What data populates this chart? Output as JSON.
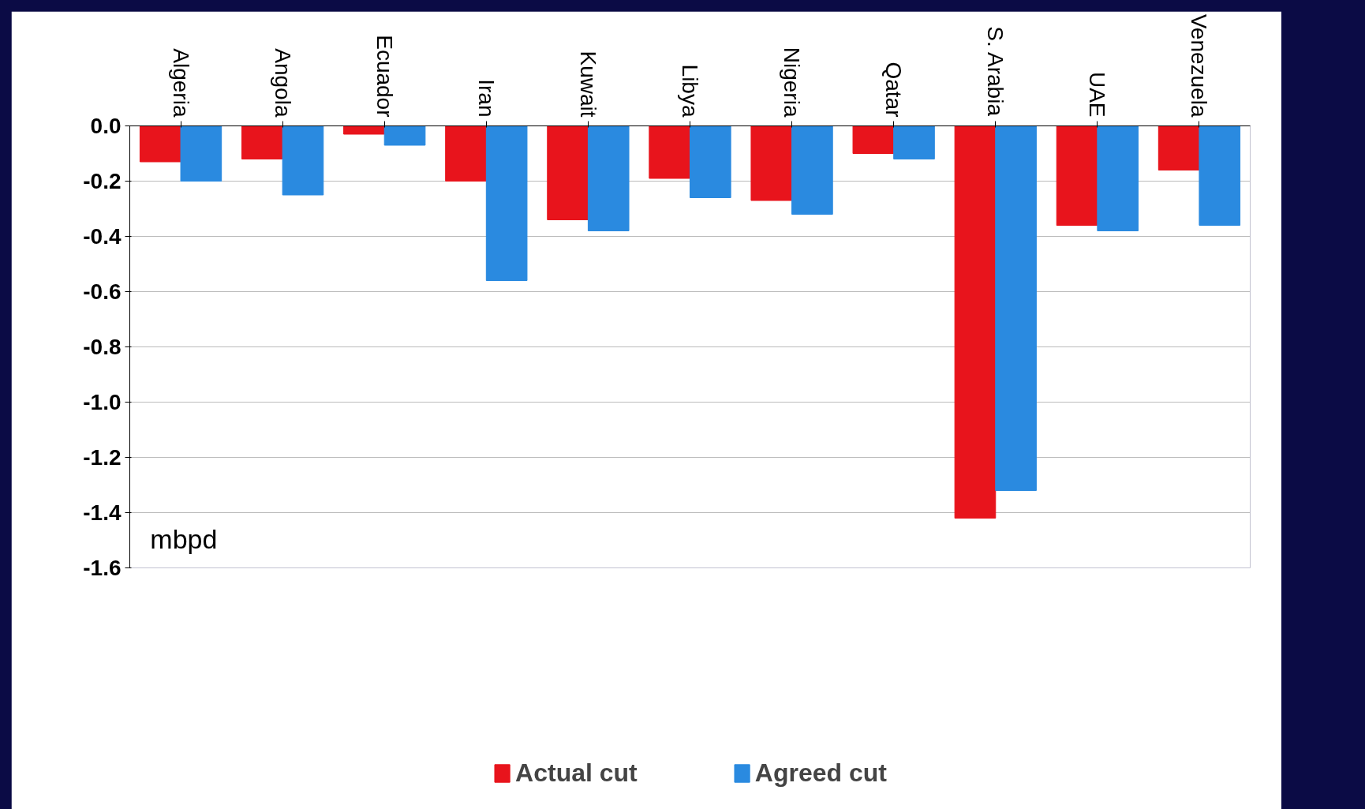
{
  "chart_data": {
    "type": "bar",
    "ylabel": "mbpd",
    "categories": [
      "Algeria",
      "Angola",
      "Ecuador",
      "Iran",
      "Kuwait",
      "Libya",
      "Nigeria",
      "Qatar",
      "S. Arabia",
      "UAE",
      "Venezuela"
    ],
    "series": [
      {
        "name": "Actual cut",
        "color": "#e8141c",
        "values": [
          -0.13,
          -0.12,
          -0.03,
          -0.2,
          -0.34,
          -0.19,
          -0.27,
          -0.1,
          -1.42,
          -0.36,
          -0.16
        ]
      },
      {
        "name": "Agreed cut",
        "color": "#2a8ae0",
        "values": [
          -0.2,
          -0.25,
          -0.07,
          -0.56,
          -0.38,
          -0.26,
          -0.32,
          -0.12,
          -1.32,
          -0.38,
          -0.36
        ]
      }
    ],
    "ylim": [
      -1.6,
      0
    ],
    "yticks": [
      {
        "value": -1.6,
        "label": "-1.6"
      },
      {
        "value": -1.4,
        "label": "-1.4"
      },
      {
        "value": -1.2,
        "label": "-1.2"
      },
      {
        "value": -1.0,
        "label": "-1.0"
      },
      {
        "value": -0.8,
        "label": "-0.8"
      },
      {
        "value": -0.6,
        "label": "-0.6"
      },
      {
        "value": -0.4,
        "label": "-0.4"
      },
      {
        "value": -0.2,
        "label": "-0.2"
      },
      {
        "value": 0,
        "label": "0.0"
      }
    ],
    "grid": "y",
    "legend": "bottom"
  }
}
